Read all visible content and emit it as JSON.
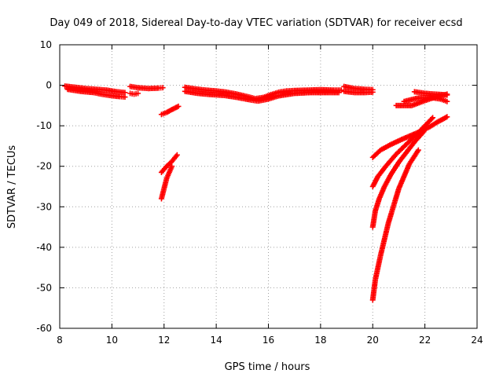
{
  "chart_data": {
    "type": "scatter",
    "title": "Day 049 of 2018, Sidereal Day-to-day VTEC variation (SDTVAR) for receiver ecsd",
    "xlabel": "GPS time / hours",
    "ylabel": "SDTVAR / TECUs",
    "xlim": [
      8,
      24
    ],
    "ylim": [
      -60,
      10
    ],
    "xticks": [
      8,
      10,
      12,
      14,
      16,
      18,
      20,
      22,
      24
    ],
    "yticks": [
      10,
      0,
      -10,
      -20,
      -30,
      -40,
      -50,
      -60
    ],
    "grid": true,
    "marker": "plus",
    "color": "#ff0000",
    "series": [
      {
        "x": [
          8.2,
          8.6,
          9.0,
          9.4,
          9.8,
          10.2,
          10.5
        ],
        "y": [
          -0.2,
          -0.5,
          -0.8,
          -1.0,
          -1.2,
          -1.6,
          -1.8
        ]
      },
      {
        "x": [
          8.3,
          8.8,
          9.3,
          9.6,
          9.9,
          10.3,
          10.5
        ],
        "y": [
          -1.0,
          -1.5,
          -1.8,
          -2.2,
          -2.5,
          -2.8,
          -2.9
        ]
      },
      {
        "x": [
          10.7,
          11.0,
          11.4,
          11.8,
          11.95
        ],
        "y": [
          -0.3,
          -0.6,
          -0.8,
          -0.7,
          -0.6
        ]
      },
      {
        "x": [
          10.7,
          10.85,
          11.0
        ],
        "y": [
          -2.0,
          -2.2,
          -2.0
        ]
      },
      {
        "x": [
          11.9,
          12.1,
          12.3,
          12.55
        ],
        "y": [
          -7.2,
          -6.7,
          -6.0,
          -5.2
        ]
      },
      {
        "x": [
          11.9,
          12.1,
          12.3,
          12.5
        ],
        "y": [
          -21.5,
          -20.0,
          -18.8,
          -17.2
        ]
      },
      {
        "x": [
          11.9,
          12.0,
          12.1,
          12.2,
          12.3
        ],
        "y": [
          -28.0,
          -25.5,
          -23.0,
          -21.5,
          -20.0
        ]
      },
      {
        "x": [
          12.8,
          13.2,
          13.6,
          14.0,
          14.4,
          14.8,
          15.2,
          15.5,
          15.8,
          16.1,
          16.4,
          16.7,
          17.0,
          17.5,
          18.0,
          18.5,
          18.8
        ],
        "y": [
          -0.5,
          -0.9,
          -1.2,
          -1.4,
          -1.7,
          -2.2,
          -2.8,
          -3.3,
          -3.0,
          -2.3,
          -1.7,
          -1.4,
          -1.3,
          -1.2,
          -1.1,
          -1.2,
          -1.2
        ]
      },
      {
        "x": [
          12.8,
          13.3,
          13.8,
          14.3,
          14.8,
          15.3,
          15.6,
          16.0,
          16.4,
          17.0,
          17.6,
          18.2,
          18.7
        ],
        "y": [
          -1.5,
          -2.0,
          -2.3,
          -2.5,
          -3.0,
          -3.6,
          -3.9,
          -3.4,
          -2.6,
          -2.0,
          -1.8,
          -1.8,
          -1.8
        ]
      },
      {
        "x": [
          18.9,
          19.3,
          19.7,
          20.0
        ],
        "y": [
          -0.3,
          -0.8,
          -1.0,
          -1.1
        ]
      },
      {
        "x": [
          18.9,
          19.3,
          19.7,
          20.0
        ],
        "y": [
          -1.5,
          -1.8,
          -1.8,
          -1.7
        ]
      },
      {
        "x": [
          20.0,
          20.3,
          20.7,
          21.1,
          21.5,
          21.9,
          22.2,
          22.5,
          22.85
        ],
        "y": [
          -17.8,
          -16.0,
          -14.6,
          -13.4,
          -12.3,
          -11.2,
          -10.2,
          -9.0,
          -7.8
        ]
      },
      {
        "x": [
          20.0,
          20.2,
          20.5,
          20.9,
          21.3,
          21.7,
          22.0,
          22.3
        ],
        "y": [
          -25.0,
          -22.5,
          -20.0,
          -17.0,
          -14.5,
          -12.0,
          -10.0,
          -8.0
        ]
      },
      {
        "x": [
          20.0,
          20.1,
          20.25,
          20.45,
          20.7,
          21.0,
          21.3,
          21.6,
          21.95
        ],
        "y": [
          -35.0,
          -31.0,
          -28.0,
          -25.0,
          -22.0,
          -19.0,
          -16.5,
          -14.0,
          -11.5
        ]
      },
      {
        "x": [
          20.0,
          20.1,
          20.3,
          20.6,
          21.0,
          21.4,
          21.75
        ],
        "y": [
          -53.0,
          -48.0,
          -42.0,
          -34.0,
          -25.5,
          -19.5,
          -16.0
        ]
      },
      {
        "x": [
          20.9,
          21.5,
          22.0,
          22.5,
          22.85
        ],
        "y": [
          -5.0,
          -5.0,
          -3.8,
          -2.7,
          -2.2
        ]
      },
      {
        "x": [
          21.2,
          21.7,
          22.2,
          22.6,
          22.85
        ],
        "y": [
          -4.0,
          -3.2,
          -3.0,
          -3.4,
          -4.0
        ]
      },
      {
        "x": [
          21.6,
          22.0,
          22.4,
          22.85
        ],
        "y": [
          -1.6,
          -2.0,
          -2.2,
          -2.4
        ]
      }
    ]
  }
}
